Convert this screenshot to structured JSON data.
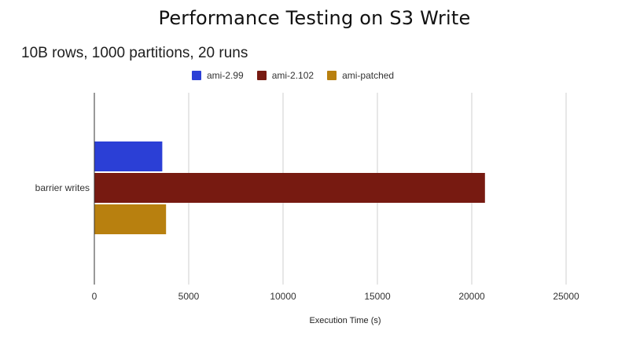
{
  "slide": {
    "title": "Performance Testing on S3 Write"
  },
  "chart_data": {
    "type": "bar",
    "orientation": "horizontal",
    "title": "10B rows, 1000 partitions, 20 runs",
    "xlabel": "Execution Time (s)",
    "ylabel": "",
    "categories": [
      "barrier writes"
    ],
    "series": [
      {
        "name": "ami-2.99",
        "color": "#2b3fd6",
        "values": [
          3600
        ]
      },
      {
        "name": "ami-2.102",
        "color": "#771a11",
        "values": [
          20700
        ]
      },
      {
        "name": "ami-patched",
        "color": "#b8800f",
        "values": [
          3800
        ]
      }
    ],
    "xlim": [
      0,
      25000
    ],
    "xticks": [
      0,
      5000,
      10000,
      15000,
      20000,
      25000
    ],
    "grid": true,
    "legend_position": "top"
  }
}
